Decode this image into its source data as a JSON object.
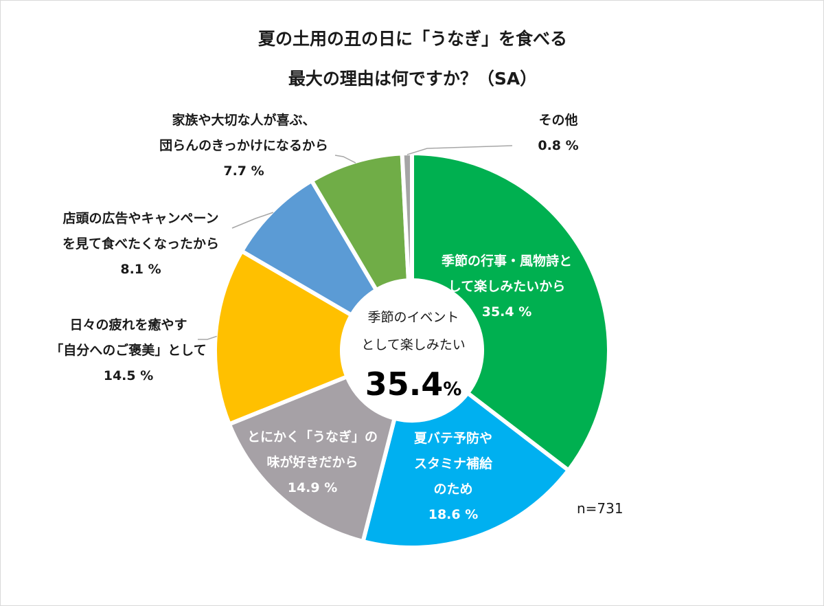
{
  "title_line1": "夏の土用の丑の日に「うなぎ」を食べる",
  "title_line2": "最大の理由は何ですか？（SA）",
  "sample_size": "n=731",
  "center": {
    "line1": "季節のイベント",
    "line2": "として楽しみたい",
    "value": "35.4",
    "unit": "%"
  },
  "chart_data": {
    "type": "pie",
    "style": "donut",
    "title": "夏の土用の丑の日に「うなぎ」を食べる 最大の理由は何ですか？（SA）",
    "unit": "%",
    "slices": [
      {
        "label_lines": [
          "季節の行事・風物詩と",
          "して楽しみたいから"
        ],
        "value": 35.4,
        "value_text": "35.4 %",
        "color": "#00b050"
      },
      {
        "label_lines": [
          "夏バテ予防や",
          "スタミナ補給",
          "のため"
        ],
        "value": 18.6,
        "value_text": "18.6 %",
        "color": "#00b0f0"
      },
      {
        "label_lines": [
          "とにかく「うなぎ」の",
          "味が好きだから"
        ],
        "value": 14.9,
        "value_text": "14.9 %",
        "color": "#a6a1a6"
      },
      {
        "label_lines": [
          "日々の疲れを癒やす",
          "「自分へのご褒美」として"
        ],
        "value": 14.5,
        "value_text": "14.5 %",
        "color": "#ffc000"
      },
      {
        "label_lines": [
          "店頭の広告やキャンペーン",
          "を見て食べたくなったから"
        ],
        "value": 8.1,
        "value_text": "8.1 %",
        "color": "#5b9bd5"
      },
      {
        "label_lines": [
          "家族や大切な人が喜ぶ、",
          "団らんのきっかけになるから"
        ],
        "value": 7.7,
        "value_text": "7.7 %",
        "color": "#70ad47"
      },
      {
        "label_lines": [
          "その他"
        ],
        "value": 0.8,
        "value_text": "0.8 %",
        "color": "#a5a5a5"
      }
    ],
    "legend": "none"
  }
}
